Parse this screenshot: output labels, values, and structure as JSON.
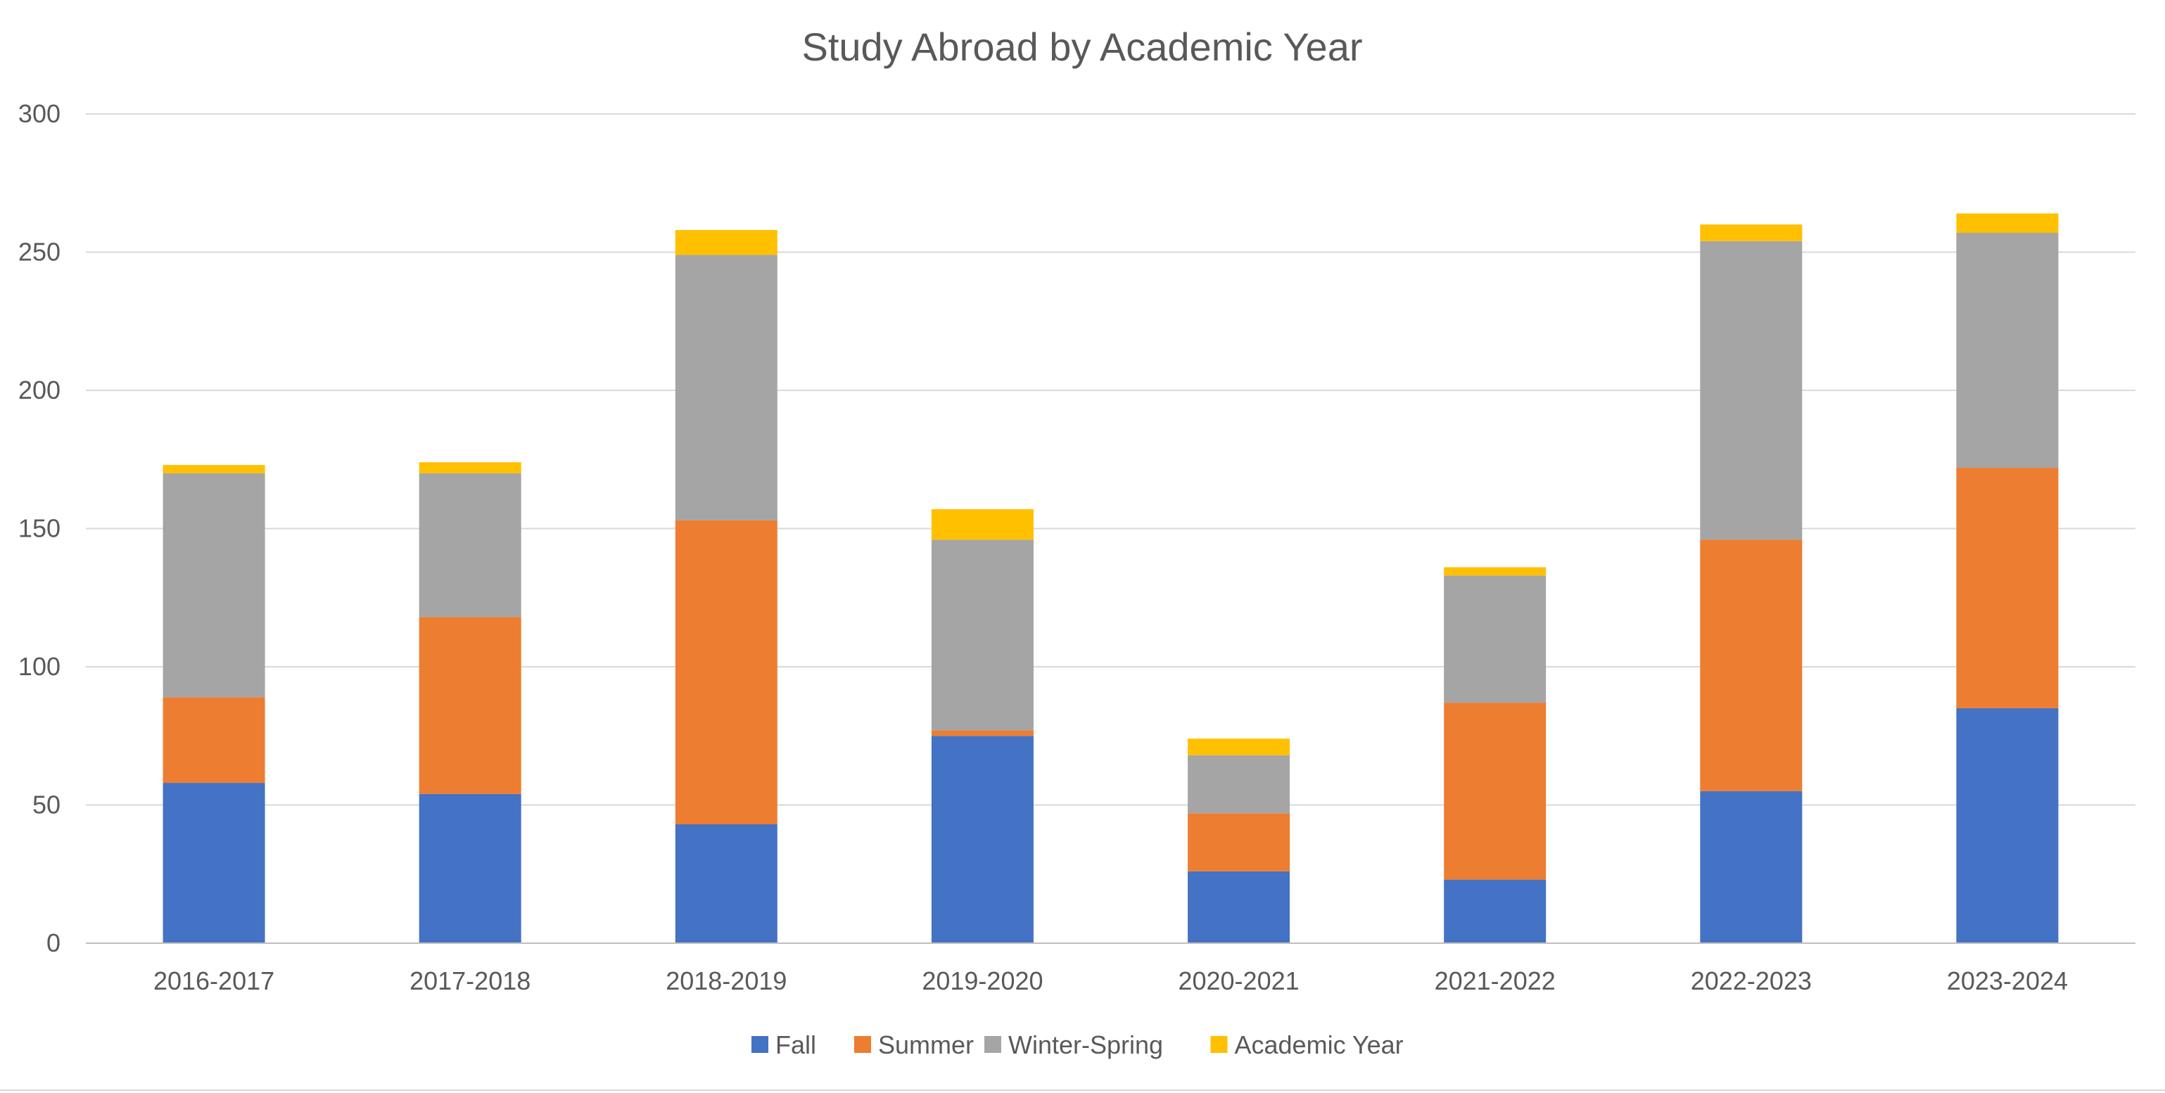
{
  "chart_data": {
    "type": "bar",
    "stacked": true,
    "title": "Study Abroad by Academic Year",
    "xlabel": "",
    "ylabel": "",
    "ylim": [
      0,
      300
    ],
    "yticks": [
      0,
      50,
      100,
      150,
      200,
      250,
      300
    ],
    "grid": true,
    "legend_position": "bottom",
    "categories": [
      "2016-2017",
      "2017-2018",
      "2018-2019",
      "2019-2020",
      "2020-2021",
      "2021-2022",
      "2022-2023",
      "2023-2024"
    ],
    "series": [
      {
        "name": "Fall",
        "color": "#4472c4",
        "values": [
          58,
          54,
          43,
          75,
          26,
          23,
          55,
          85
        ]
      },
      {
        "name": "Summer",
        "color": "#ed7d31",
        "values": [
          31,
          64,
          110,
          2,
          21,
          64,
          91,
          87
        ]
      },
      {
        "name": "Winter-Spring",
        "color": "#a5a5a5",
        "values": [
          81,
          52,
          96,
          69,
          21,
          46,
          108,
          85
        ]
      },
      {
        "name": "Academic Year",
        "color": "#ffc000",
        "values": [
          3,
          4,
          9,
          11,
          6,
          3,
          6,
          7
        ]
      }
    ]
  }
}
